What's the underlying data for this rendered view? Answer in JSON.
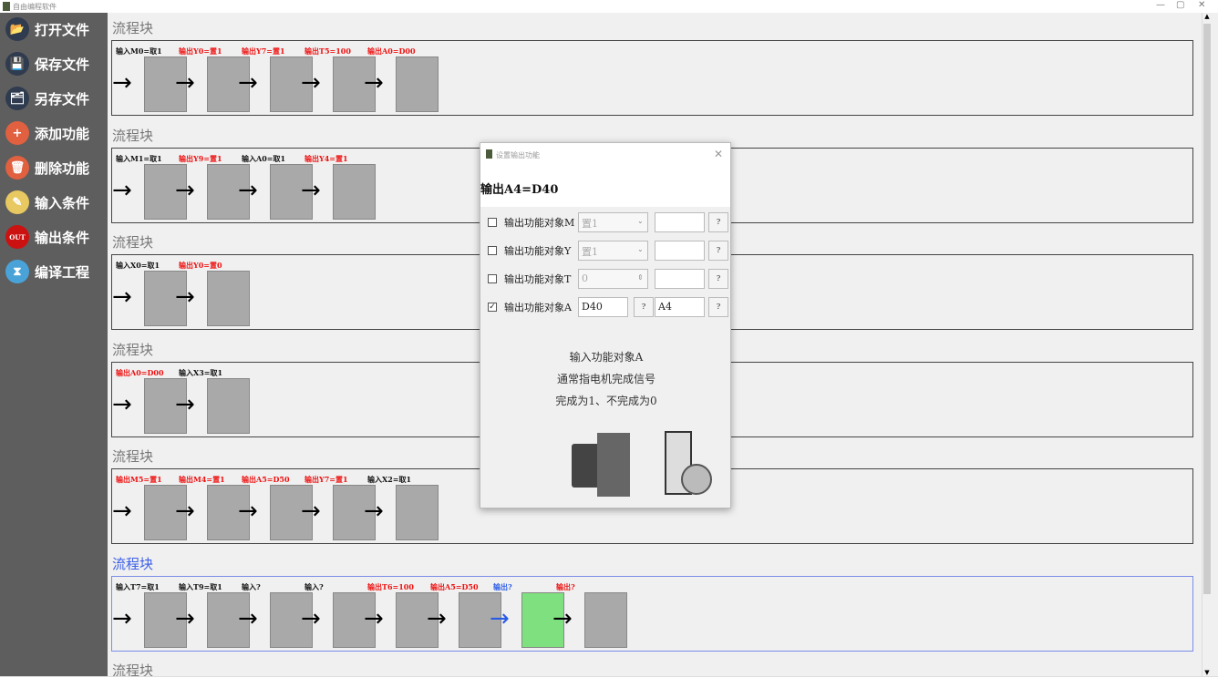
{
  "window": {
    "title": "自由编程软件",
    "minimize": "—",
    "maximize": "▢",
    "close": "✕"
  },
  "sidebar": {
    "items": [
      {
        "label": "打开文件",
        "icon": "open-folder-icon",
        "color": "#2f3b4f",
        "glyph": "📂"
      },
      {
        "label": "保存文件",
        "icon": "save-icon",
        "color": "#2f3b4f",
        "glyph": "💾"
      },
      {
        "label": "另存文件",
        "icon": "save-as-icon",
        "color": "#2f3b4f",
        "glyph": "🗂"
      },
      {
        "label": "添加功能",
        "icon": "add-icon",
        "color": "#e06040",
        "glyph": "+"
      },
      {
        "label": "删除功能",
        "icon": "delete-icon",
        "color": "#e06040",
        "glyph": "🗑"
      },
      {
        "label": "输入条件",
        "icon": "input-pen-icon",
        "color": "#e8c860",
        "glyph": "✎"
      },
      {
        "label": "输出条件",
        "icon": "output-pen-icon",
        "color": "#cc1111",
        "glyph": "OUT"
      },
      {
        "label": "编译工程",
        "icon": "hourglass-icon",
        "color": "#4aa3d8",
        "glyph": "⧗"
      }
    ]
  },
  "blocks": [
    {
      "title": "流程块",
      "selected": false,
      "steps": [
        {
          "label": "输入M0=取1",
          "type": "input"
        },
        {
          "label": "输出Y0=置1",
          "type": "output"
        },
        {
          "label": "输出Y7=置1",
          "type": "output"
        },
        {
          "label": "输出T5=100",
          "type": "output"
        },
        {
          "label": "输出A0=D00",
          "type": "output"
        }
      ]
    },
    {
      "title": "流程块",
      "selected": false,
      "steps": [
        {
          "label": "输入M1=取1",
          "type": "input"
        },
        {
          "label": "输出Y9=置1",
          "type": "output"
        },
        {
          "label": "输入A0=取1",
          "type": "input"
        },
        {
          "label": "输出Y4=置1",
          "type": "output"
        }
      ]
    },
    {
      "title": "流程块",
      "selected": false,
      "steps": [
        {
          "label": "输入X0=取1",
          "type": "input"
        },
        {
          "label": "输出Y0=置0",
          "type": "output"
        }
      ]
    },
    {
      "title": "流程块",
      "selected": false,
      "steps": [
        {
          "label": "输出A0=D00",
          "type": "output"
        },
        {
          "label": "输入X3=取1",
          "type": "input"
        }
      ]
    },
    {
      "title": "流程块",
      "selected": false,
      "steps": [
        {
          "label": "输出M5=置1",
          "type": "output"
        },
        {
          "label": "输出M4=置1",
          "type": "output"
        },
        {
          "label": "输出A5=D50",
          "type": "output"
        },
        {
          "label": "输出Y7=置1",
          "type": "output"
        },
        {
          "label": "输入X2=取1",
          "type": "input"
        }
      ]
    },
    {
      "title": "流程块",
      "selected": true,
      "steps": [
        {
          "label": "输入T7=取1",
          "type": "input"
        },
        {
          "label": "输入T9=取1",
          "type": "input"
        },
        {
          "label": "输入?",
          "type": "input"
        },
        {
          "label": "输入?",
          "type": "input"
        },
        {
          "label": "输出T6=100",
          "type": "output"
        },
        {
          "label": "输出A5=D50",
          "type": "output"
        },
        {
          "label": "输出?",
          "type": "active"
        },
        {
          "label": "输出?",
          "type": "output"
        }
      ]
    },
    {
      "title": "流程块",
      "selected": false,
      "steps": []
    }
  ],
  "colors": {
    "input": "#111111",
    "output": "#ee1111",
    "active": "#2b5ce6",
    "selected_box": "#7fe07f"
  },
  "dialog": {
    "title": "设置输出功能",
    "close": "✕",
    "heading": "输出A4=D40",
    "rows": [
      {
        "checked": false,
        "label": "输出功能对象M",
        "value": "置1",
        "kind": "select",
        "value2": "",
        "help": "?"
      },
      {
        "checked": false,
        "label": "输出功能对象Y",
        "value": "置1",
        "kind": "select",
        "value2": "",
        "help": "?"
      },
      {
        "checked": false,
        "label": "输出功能对象T",
        "value": "0",
        "kind": "spin",
        "value2": "",
        "help": "?"
      },
      {
        "checked": true,
        "label": "输出功能对象A",
        "value": "D40",
        "kind": "text",
        "value2": "A4",
        "help": "?",
        "help1": "?"
      }
    ],
    "description": [
      "输入功能对象A",
      "通常指电机完成信号",
      "完成为1、不完成为0"
    ]
  }
}
